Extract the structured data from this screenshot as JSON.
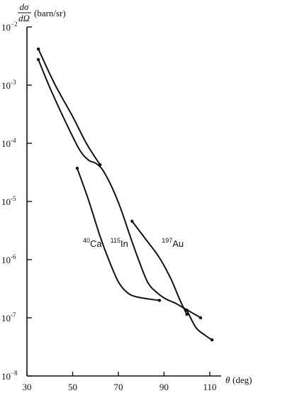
{
  "chart_data": {
    "type": "line",
    "y_scale": "log",
    "xlim": [
      30,
      115
    ],
    "ylim_exponent": [
      -8,
      -2
    ],
    "ylabel": "(barn/sr)",
    "ylabel_math": {
      "num": "dσ",
      "den": "dΩ"
    },
    "xlabel": "(deg)",
    "xlabel_symbol": "θ",
    "x_ticks": [
      {
        "value": 30,
        "label": "30"
      },
      {
        "value": 50,
        "label": "50"
      },
      {
        "value": 70,
        "label": "70"
      },
      {
        "value": 90,
        "label": "90"
      },
      {
        "value": 110,
        "label": "110"
      }
    ],
    "y_ticks": [
      {
        "exp": -2,
        "base": "10",
        "sup": "−2"
      },
      {
        "exp": -3,
        "base": "10",
        "sup": "-3"
      },
      {
        "exp": -4,
        "base": "10",
        "sup": "-4"
      },
      {
        "exp": -5,
        "base": "10",
        "sup": "-5"
      },
      {
        "exp": -6,
        "base": "10",
        "sup": "-6"
      },
      {
        "exp": -7,
        "base": "10",
        "sup": "-7"
      },
      {
        "exp": -8,
        "base": "10",
        "sup": "−8"
      }
    ],
    "series": [
      {
        "id": "ca",
        "x": [
          35,
          42,
          50,
          56,
          62
        ],
        "exp": [
          -2.38,
          -2.97,
          -3.54,
          -4.0,
          -4.37
        ]
      },
      {
        "id": "ca-back",
        "x": [
          52,
          57,
          62,
          66,
          70,
          74,
          78,
          84,
          88
        ],
        "exp": [
          -4.43,
          -4.98,
          -5.6,
          -6.02,
          -6.38,
          -6.57,
          -6.64,
          -6.68,
          -6.7
        ]
      },
      {
        "id": "in",
        "x": [
          35,
          40,
          47,
          53,
          57,
          60,
          63,
          67,
          71,
          75,
          79,
          83,
          87,
          91,
          95,
          99,
          103,
          106
        ],
        "exp": [
          -2.56,
          -3.04,
          -3.64,
          -4.11,
          -4.29,
          -4.34,
          -4.45,
          -4.74,
          -5.12,
          -5.58,
          -6.02,
          -6.4,
          -6.57,
          -6.68,
          -6.75,
          -6.84,
          -6.93,
          -7.0
        ]
      },
      {
        "id": "au",
        "x": [
          76,
          82,
          88,
          93,
          97,
          100
        ],
        "exp": [
          -5.34,
          -5.65,
          -5.97,
          -6.33,
          -6.7,
          -6.94
        ]
      },
      {
        "id": "au-back",
        "x": [
          100,
          104,
          108,
          111
        ],
        "exp": [
          -6.87,
          -7.17,
          -7.3,
          -7.38
        ]
      }
    ],
    "annotations": [
      {
        "id": "ca",
        "sup": "40",
        "text": "Ca",
        "x": 54.5,
        "exp": -5.78
      },
      {
        "id": "in",
        "sup": "115",
        "text": "In",
        "x": 66.5,
        "exp": -5.78
      },
      {
        "id": "au",
        "sup": "197",
        "text": "Au",
        "x": 89,
        "exp": -5.78
      }
    ]
  }
}
